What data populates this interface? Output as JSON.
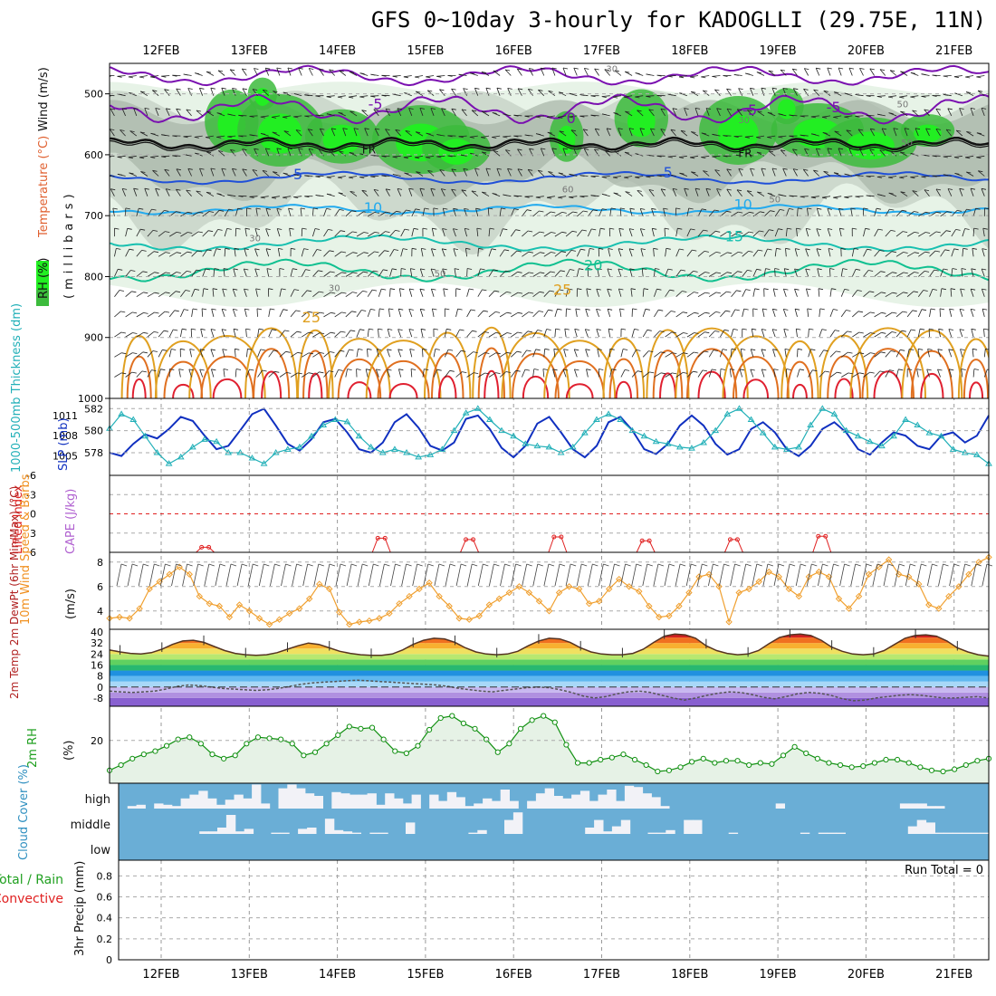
{
  "title": "GFS 0~10day 3-hourly for KADOGLLI (29.75E, 11N)",
  "colors": {
    "rh_dark": "#3cbb3c",
    "rh_bright": "#22ee22",
    "rh_light": "#e6f2e6",
    "rh_grey": "#aab7aa",
    "temp_purple": "#7a10b0",
    "temp_blue": "#2050d8",
    "temp_cyan": "#22aaee",
    "temp_teal": "#18c0b0",
    "temp_green": "#10c090",
    "temp_orange": "#e0a020",
    "temp_dkorange": "#e07020",
    "temp_red": "#e02030",
    "slp_line": "#1030c0",
    "thick_line": "#22b0b8",
    "li_line": "#e02020",
    "wind_line": "#f0a030",
    "rh2m_line": "#109010",
    "cloud_bg": "#6aaed6",
    "cloud_fill": "#f2f2f7"
  },
  "chart_data": [
    {
      "panel": "upper_air",
      "type": "contour",
      "ylabel_wind": "Wind (m/s)",
      "ylabel_temp": "Temperature (°C)",
      "ylabel_rh": "RH (%)",
      "ylabel_p": "(millibars)",
      "yticks": [
        "500",
        "600",
        "700",
        "800",
        "900",
        "1000"
      ],
      "ylim": [
        450,
        1000
      ],
      "temperature_labels": [
        "-5",
        "0",
        "-5",
        "-5",
        "5",
        "5",
        "10",
        "10",
        "15",
        "20",
        "25",
        "25"
      ],
      "freezing_labels": [
        "FR",
        "FR"
      ],
      "rh_labels": [
        "30",
        "50",
        "30",
        "30",
        "50",
        "50",
        "60",
        "50",
        "30"
      ]
    },
    {
      "panel": "thickness_slp",
      "type": "line",
      "ylabel_left": "1000-500mb Thickness (dm)",
      "ylabel_right": "SLP (mb)",
      "yticks_left": [
        "582",
        "580",
        "578"
      ],
      "yticks_right": [
        "1011",
        "1008",
        "1005"
      ],
      "series": [
        {
          "name": "SLP (mb)",
          "values": [
            1005.5,
            1005.0,
            1006.8,
            1008.2,
            1007.6,
            1009.0,
            1010.8,
            1010.2,
            1008.0,
            1006.0,
            1006.5,
            1008.8,
            1011.2,
            1012.0,
            1009.5,
            1006.8,
            1005.8,
            1007.5,
            1010.0,
            1010.5,
            1008.5,
            1006.0,
            1005.5,
            1007.0,
            1010.0,
            1011.2,
            1009.2,
            1006.5,
            1005.8,
            1007.0,
            1010.5,
            1011.0,
            1009.0,
            1006.2,
            1004.8,
            1006.5,
            1009.8,
            1010.8,
            1008.5,
            1006.0,
            1004.8,
            1006.5,
            1010.0,
            1010.8,
            1008.8,
            1006.0,
            1005.3,
            1006.8,
            1009.5,
            1011.0,
            1009.5,
            1006.8,
            1005.2,
            1006.0,
            1009.0,
            1010.0,
            1008.5,
            1006.0,
            1005.0,
            1006.5,
            1009.0,
            1010.0,
            1008.5,
            1006.0,
            1005.2,
            1007.0,
            1008.5,
            1008.0,
            1006.5,
            1006.0,
            1008.0,
            1008.5,
            1007.0,
            1008.0,
            1011.0
          ]
        },
        {
          "name": "Thickness (dm)",
          "values": [
            580.2,
            581.5,
            581.0,
            579.5,
            578.0,
            577.0,
            577.6,
            578.5,
            579.2,
            579.0,
            578.0,
            578.0,
            577.5,
            577.0,
            578.0,
            578.3,
            578.5,
            579.5,
            580.5,
            581.0,
            580.8,
            579.5,
            578.5,
            578.0,
            578.3,
            578.0,
            577.6,
            577.8,
            578.3,
            580.0,
            581.6,
            582.0,
            581.0,
            580.0,
            579.5,
            578.8,
            578.6,
            578.5,
            578.0,
            578.5,
            579.8,
            581.0,
            581.5,
            581.0,
            580.0,
            579.5,
            579.0,
            578.8,
            578.5,
            578.4,
            578.9,
            580.0,
            581.5,
            582.0,
            581.0,
            579.8,
            578.5,
            578.3,
            578.5,
            580.5,
            582.0,
            581.5,
            580.0,
            579.5,
            579.0,
            578.6,
            579.5,
            581.0,
            580.5,
            579.8,
            579.5,
            578.3,
            578.0,
            577.8,
            577.0
          ]
        }
      ]
    },
    {
      "panel": "lifted_index",
      "type": "line",
      "ylabel": "Lifted Index",
      "ylabel_cape": "CAPE (J/kg)",
      "yticks": [
        "-6",
        "-3",
        "0",
        "3",
        "6"
      ],
      "ylim": [
        -6,
        6
      ],
      "bump_days": [
        0.5,
        2.5,
        3.5,
        4.5,
        5.5,
        6.5,
        7.5
      ],
      "bump_values": [
        5.2,
        3.8,
        4.0,
        3.6,
        4.2,
        4.0,
        3.5
      ]
    },
    {
      "panel": "wind10m",
      "type": "line",
      "ylabel": "10m Wind Speed & Barbs",
      "yunit": "(m/s)",
      "yticks": [
        "8",
        "6",
        "4"
      ],
      "ylim": [
        2.5,
        8.8
      ],
      "values": [
        3.4,
        3.5,
        3.4,
        4.2,
        5.8,
        6.4,
        7.0,
        7.6,
        7.0,
        5.2,
        4.6,
        4.4,
        3.5,
        4.5,
        4.0,
        3.4,
        2.9,
        3.3,
        3.8,
        4.2,
        5.0,
        6.2,
        5.8,
        3.9,
        2.9,
        3.1,
        3.2,
        3.4,
        3.8,
        4.6,
        5.2,
        5.8,
        6.3,
        5.2,
        4.4,
        3.4,
        3.3,
        3.6,
        4.5,
        5.0,
        5.5,
        6.0,
        5.5,
        4.8,
        4.0,
        5.5,
        6.0,
        5.8,
        4.6,
        4.8,
        5.8,
        6.6,
        6.0,
        5.6,
        4.4,
        3.5,
        3.6,
        4.4,
        5.5,
        6.8,
        7.0,
        6.0,
        3.1,
        5.5,
        5.8,
        6.4,
        7.2,
        6.8,
        5.8,
        5.2,
        6.8,
        7.2,
        6.8,
        5.0,
        4.2,
        5.2,
        7.0,
        7.6,
        8.2,
        7.0,
        6.8,
        6.2,
        4.5,
        4.2,
        5.2,
        6.0,
        7.0,
        8.0,
        8.4
      ]
    },
    {
      "panel": "temp2m",
      "type": "area",
      "ylabel": "2m Temp 2m DewPt (6hr Min/Max) (°C)",
      "yticks": [
        "40",
        "32",
        "24",
        "16",
        "8",
        "0",
        "-8"
      ],
      "ylim": [
        -14,
        42
      ],
      "temp_values": [
        27.0,
        25.5,
        24.5,
        24.0,
        25.0,
        27.5,
        31.0,
        33.5,
        34.0,
        32.5,
        29.5,
        26.5,
        24.5,
        23.5,
        23.0,
        23.5,
        25.0,
        27.5,
        30.0,
        32.0,
        31.0,
        28.5,
        26.0,
        24.5,
        23.5,
        23.0,
        23.0,
        24.0,
        27.0,
        31.0,
        34.0,
        35.5,
        35.0,
        32.5,
        28.5,
        25.5,
        24.0,
        23.5,
        24.0,
        26.0,
        30.0,
        33.5,
        35.5,
        35.0,
        32.5,
        28.5,
        25.5,
        24.0,
        23.5,
        23.5,
        24.5,
        27.5,
        32.5,
        37.0,
        38.5,
        38.0,
        35.5,
        30.0,
        26.5,
        24.5,
        23.5,
        24.0,
        26.5,
        31.5,
        36.0,
        38.0,
        38.5,
        37.5,
        34.0,
        29.0,
        26.0,
        24.0,
        23.5,
        24.0,
        26.5,
        31.0,
        35.5,
        37.5,
        38.0,
        37.0,
        33.5,
        28.5,
        25.5,
        23.5,
        22.5
      ],
      "dewpoint_values": [
        -3.0,
        -3.5,
        -4.0,
        -3.5,
        -3.0,
        -1.5,
        0.5,
        1.5,
        1.0,
        0.0,
        -1.0,
        -1.5,
        -2.0,
        -2.5,
        -2.0,
        -1.0,
        0.5,
        2.0,
        3.0,
        3.5,
        4.0,
        4.5,
        5.0,
        4.5,
        4.0,
        3.5,
        3.0,
        2.5,
        2.0,
        1.5,
        0.5,
        -1.0,
        -2.0,
        -3.0,
        -3.5,
        -2.5,
        -1.5,
        -0.5,
        0.0,
        -0.5,
        -2.0,
        -4.0,
        -6.5,
        -8.0,
        -7.0,
        -5.0,
        -3.5,
        -3.0,
        -4.0,
        -6.0,
        -8.0,
        -9.5,
        -8.0,
        -6.0,
        -4.5,
        -3.5,
        -4.0,
        -5.5,
        -7.5,
        -8.5,
        -7.0,
        -5.0,
        -4.0,
        -4.5,
        -6.0,
        -8.5,
        -10.0,
        -9.5,
        -8.0,
        -7.0,
        -6.0,
        -5.5,
        -6.0,
        -7.0,
        -8.0,
        -8.0,
        -7.5,
        -7.0,
        -8.0
      ]
    },
    {
      "panel": "rh2m",
      "type": "line",
      "ylabel": "2m RH",
      "yunit": "(%)",
      "yticks": [
        "20"
      ],
      "ylim": [
        0,
        36
      ],
      "values": [
        6.0,
        8.5,
        11.5,
        13.5,
        15.0,
        17.5,
        20.5,
        21.5,
        18.5,
        13.5,
        11.5,
        13.0,
        18.5,
        21.5,
        21.0,
        20.5,
        18.5,
        13.0,
        14.5,
        18.5,
        22.5,
        26.5,
        25.5,
        26.0,
        20.5,
        15.0,
        14.0,
        17.5,
        25.0,
        30.5,
        31.5,
        28.0,
        25.5,
        20.5,
        14.5,
        18.5,
        25.5,
        29.5,
        31.5,
        28.5,
        18.0,
        9.5,
        9.5,
        11.0,
        12.0,
        13.5,
        11.0,
        8.5,
        5.5,
        6.0,
        7.5,
        10.0,
        11.5,
        9.5,
        10.5,
        10.5,
        8.5,
        9.5,
        9.0,
        13.0,
        17.0,
        14.0,
        11.5,
        9.5,
        8.5,
        7.5,
        8.0,
        9.5,
        11.0,
        11.0,
        9.5,
        7.5,
        6.0,
        5.5,
        6.5,
        8.5,
        10.5,
        11.5
      ]
    },
    {
      "panel": "cloud_cover",
      "type": "bar",
      "ylabel": "Cloud Cover (%)",
      "levels": [
        "high",
        "middle",
        "low"
      ],
      "high": [
        0,
        0.1,
        0.15,
        0,
        0.2,
        0.15,
        0.1,
        0.4,
        0.55,
        0.7,
        0.4,
        0.15,
        0.35,
        0.55,
        0.4,
        0.95,
        0.2,
        0,
        0.8,
        0.95,
        0.8,
        0.6,
        0.5,
        0,
        0.65,
        0.6,
        0.55,
        0.55,
        0.6,
        0.15,
        0.6,
        0.4,
        0.2,
        0.55,
        0,
        0.55,
        0.3,
        0.65,
        0.45,
        0.1,
        0.2,
        0.4,
        0.3,
        0.75,
        0.3,
        0,
        0.3,
        0.6,
        0.8,
        0.5,
        0.4,
        0.55,
        0.7,
        0.3,
        0.55,
        0.75,
        0.3,
        0.9,
        0.85,
        0.6,
        0.45,
        0.1,
        0,
        0,
        0,
        0,
        0,
        0,
        0,
        0,
        0,
        0,
        0,
        0,
        0.2,
        0,
        0,
        0,
        0,
        0,
        0,
        0,
        0,
        0,
        0,
        0,
        0,
        0,
        0.2,
        0.2,
        0.2,
        0.1,
        0.1,
        0,
        0,
        0,
        0,
        0
      ],
      "middle": [
        0,
        0,
        0,
        0,
        0,
        0,
        0,
        0,
        0,
        0.1,
        0.1,
        0.25,
        0.75,
        0.1,
        0.2,
        0,
        0,
        0.05,
        0.05,
        0,
        0.2,
        0.25,
        0,
        0.6,
        0.15,
        0.1,
        0.05,
        0,
        0.05,
        0.05,
        0,
        0,
        0.45,
        0,
        0,
        0,
        0,
        0,
        0,
        0.05,
        0.15,
        0,
        0,
        0.55,
        0.85,
        0,
        0,
        0,
        0,
        0,
        0,
        0,
        0.25,
        0.55,
        0.1,
        0.3,
        0.55,
        0,
        0,
        0.05,
        0.05,
        0.15,
        0,
        0.55,
        0.55,
        0,
        0,
        0,
        0.05,
        0,
        0,
        0,
        0,
        0,
        0,
        0,
        0.05,
        0,
        0.05,
        0.05,
        0.05,
        0,
        0,
        0,
        0,
        0,
        0,
        0,
        0.3,
        0.55,
        0.45,
        0.05,
        0.05,
        0.05,
        0.05,
        0.05,
        0.05
      ],
      "low": [
        0,
        0,
        0,
        0,
        0,
        0,
        0,
        0,
        0,
        0,
        0,
        0,
        0,
        0,
        0,
        0,
        0,
        0,
        0,
        0,
        0,
        0,
        0,
        0,
        0,
        0,
        0,
        0,
        0,
        0,
        0,
        0,
        0,
        0,
        0,
        0,
        0,
        0,
        0,
        0,
        0,
        0,
        0,
        0,
        0,
        0,
        0,
        0,
        0,
        0,
        0,
        0,
        0,
        0,
        0,
        0,
        0,
        0,
        0,
        0,
        0,
        0,
        0,
        0,
        0,
        0,
        0,
        0,
        0,
        0,
        0,
        0,
        0,
        0,
        0,
        0,
        0,
        0,
        0,
        0,
        0,
        0,
        0,
        0,
        0,
        0,
        0,
        0,
        0,
        0,
        0,
        0,
        0,
        0,
        0,
        0,
        0,
        0
      ]
    },
    {
      "panel": "precip",
      "type": "bar",
      "ylabel_total": "Total / Rain",
      "ylabel_conv": "Convective",
      "ylabel_axis": "3hr Precip (mm)",
      "run_total": "Run Total = 0",
      "yticks": [
        "0.8",
        "0.6",
        "0.4",
        "0.2",
        "0"
      ],
      "ylim": [
        0,
        0.95
      ],
      "values": []
    }
  ],
  "dates": [
    "12FEB",
    "13FEB",
    "14FEB",
    "15FEB",
    "16FEB",
    "17FEB",
    "18FEB",
    "19FEB",
    "20FEB",
    "21FEB"
  ]
}
